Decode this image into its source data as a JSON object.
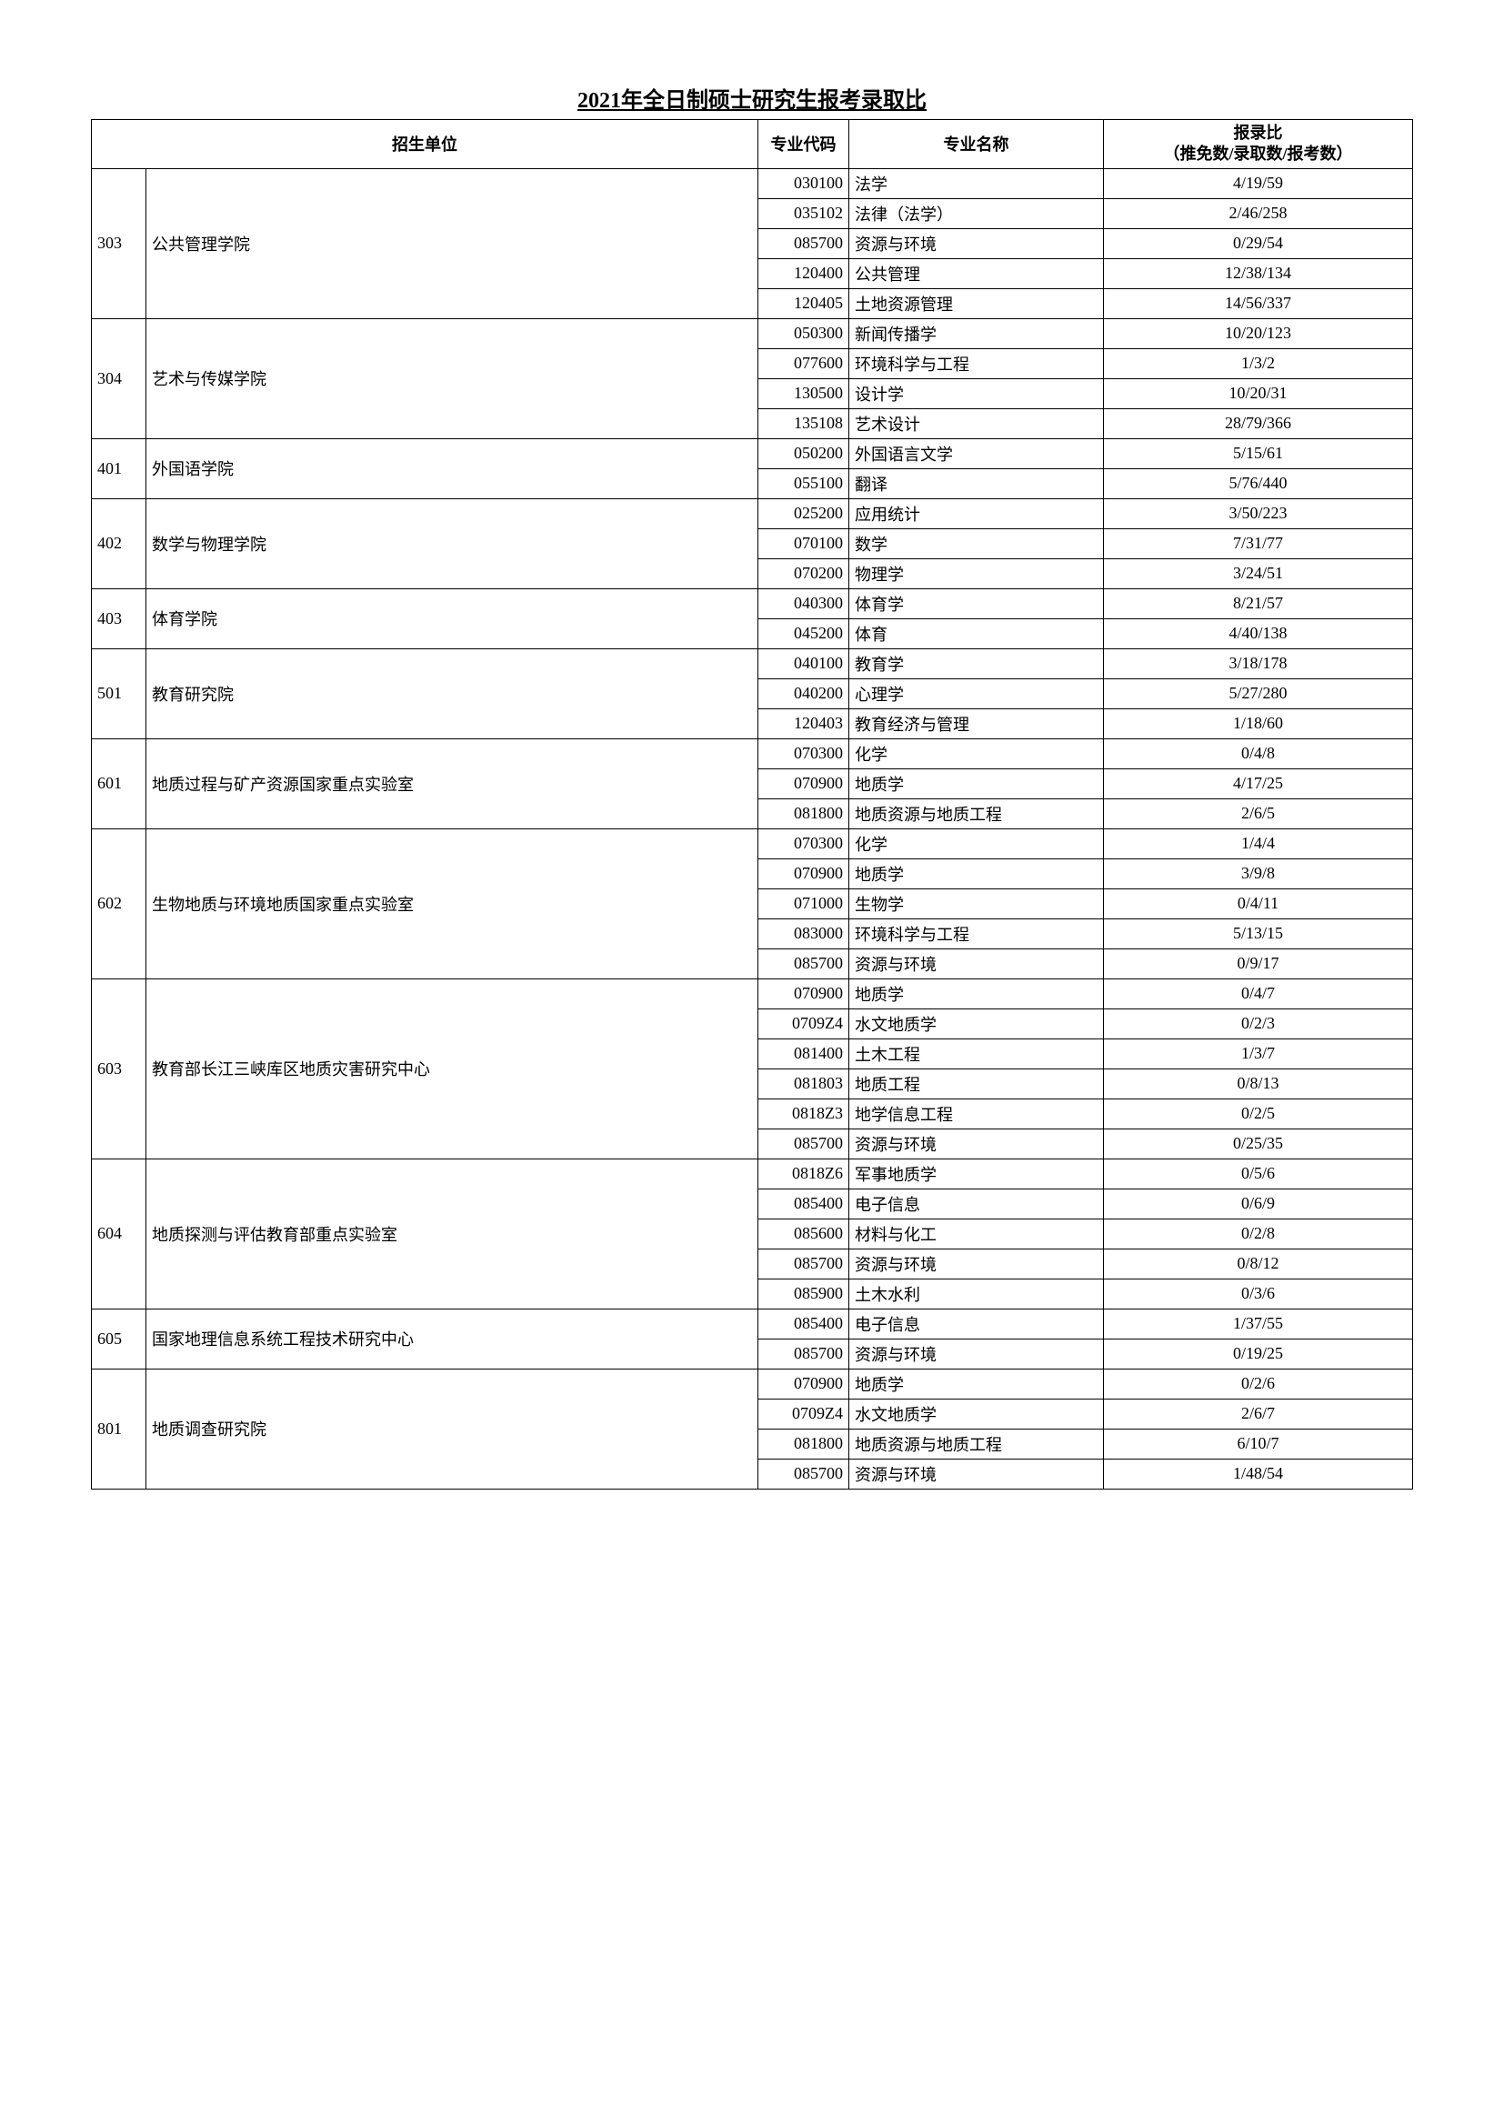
{
  "title": "2021年全日制硕士研究生报考录取比",
  "headers": {
    "dept": "招生单位",
    "code": "专业代码",
    "major": "专业名称",
    "ratio_line1": "报录比",
    "ratio_line2": "（推免数/录取数/报考数）"
  },
  "departments": [
    {
      "code": "303",
      "name": "公共管理学院",
      "rows": [
        {
          "code": "030100",
          "major": "法学",
          "ratio": "4/19/59"
        },
        {
          "code": "035102",
          "major": "法律（法学）",
          "ratio": "2/46/258"
        },
        {
          "code": "085700",
          "major": "资源与环境",
          "ratio": "0/29/54"
        },
        {
          "code": "120400",
          "major": "公共管理",
          "ratio": "12/38/134"
        },
        {
          "code": "120405",
          "major": "土地资源管理",
          "ratio": "14/56/337"
        }
      ]
    },
    {
      "code": "304",
      "name": "艺术与传媒学院",
      "rows": [
        {
          "code": "050300",
          "major": "新闻传播学",
          "ratio": "10/20/123"
        },
        {
          "code": "077600",
          "major": "环境科学与工程",
          "ratio": "1/3/2"
        },
        {
          "code": "130500",
          "major": "设计学",
          "ratio": "10/20/31"
        },
        {
          "code": "135108",
          "major": "艺术设计",
          "ratio": "28/79/366"
        }
      ]
    },
    {
      "code": "401",
      "name": "外国语学院",
      "rows": [
        {
          "code": "050200",
          "major": "外国语言文学",
          "ratio": "5/15/61"
        },
        {
          "code": "055100",
          "major": "翻译",
          "ratio": "5/76/440"
        }
      ]
    },
    {
      "code": "402",
      "name": "数学与物理学院",
      "rows": [
        {
          "code": "025200",
          "major": "应用统计",
          "ratio": "3/50/223"
        },
        {
          "code": "070100",
          "major": "数学",
          "ratio": "7/31/77"
        },
        {
          "code": "070200",
          "major": "物理学",
          "ratio": "3/24/51"
        }
      ]
    },
    {
      "code": "403",
      "name": "体育学院",
      "rows": [
        {
          "code": "040300",
          "major": "体育学",
          "ratio": "8/21/57"
        },
        {
          "code": "045200",
          "major": "体育",
          "ratio": "4/40/138"
        }
      ]
    },
    {
      "code": "501",
      "name": "教育研究院",
      "rows": [
        {
          "code": "040100",
          "major": "教育学",
          "ratio": "3/18/178"
        },
        {
          "code": "040200",
          "major": "心理学",
          "ratio": "5/27/280"
        },
        {
          "code": "120403",
          "major": "教育经济与管理",
          "ratio": "1/18/60"
        }
      ]
    },
    {
      "code": "601",
      "name": "地质过程与矿产资源国家重点实验室",
      "rows": [
        {
          "code": "070300",
          "major": "化学",
          "ratio": "0/4/8"
        },
        {
          "code": "070900",
          "major": "地质学",
          "ratio": "4/17/25"
        },
        {
          "code": "081800",
          "major": "地质资源与地质工程",
          "ratio": "2/6/5"
        }
      ]
    },
    {
      "code": "602",
      "name": "生物地质与环境地质国家重点实验室",
      "rows": [
        {
          "code": "070300",
          "major": "化学",
          "ratio": "1/4/4"
        },
        {
          "code": "070900",
          "major": "地质学",
          "ratio": "3/9/8"
        },
        {
          "code": "071000",
          "major": "生物学",
          "ratio": "0/4/11"
        },
        {
          "code": "083000",
          "major": "环境科学与工程",
          "ratio": "5/13/15"
        },
        {
          "code": "085700",
          "major": "资源与环境",
          "ratio": "0/9/17"
        }
      ]
    },
    {
      "code": "603",
      "name": "教育部长江三峡库区地质灾害研究中心",
      "rows": [
        {
          "code": "070900",
          "major": "地质学",
          "ratio": "0/4/7"
        },
        {
          "code": "0709Z4",
          "major": "水文地质学",
          "ratio": "0/2/3"
        },
        {
          "code": "081400",
          "major": "土木工程",
          "ratio": "1/3/7"
        },
        {
          "code": "081803",
          "major": "地质工程",
          "ratio": "0/8/13"
        },
        {
          "code": "0818Z3",
          "major": "地学信息工程",
          "ratio": "0/2/5"
        },
        {
          "code": "085700",
          "major": "资源与环境",
          "ratio": "0/25/35"
        }
      ]
    },
    {
      "code": "604",
      "name": "地质探测与评估教育部重点实验室",
      "rows": [
        {
          "code": "0818Z6",
          "major": "军事地质学",
          "ratio": "0/5/6"
        },
        {
          "code": "085400",
          "major": "电子信息",
          "ratio": "0/6/9"
        },
        {
          "code": "085600",
          "major": "材料与化工",
          "ratio": "0/2/8"
        },
        {
          "code": "085700",
          "major": "资源与环境",
          "ratio": "0/8/12"
        },
        {
          "code": "085900",
          "major": "土木水利",
          "ratio": "0/3/6"
        }
      ]
    },
    {
      "code": "605",
      "name": "国家地理信息系统工程技术研究中心",
      "rows": [
        {
          "code": "085400",
          "major": "电子信息",
          "ratio": "1/37/55"
        },
        {
          "code": "085700",
          "major": "资源与环境",
          "ratio": "0/19/25"
        }
      ]
    },
    {
      "code": "801",
      "name": "地质调查研究院",
      "rows": [
        {
          "code": "070900",
          "major": "地质学",
          "ratio": "0/2/6"
        },
        {
          "code": "0709Z4",
          "major": "水文地质学",
          "ratio": "2/6/7"
        },
        {
          "code": "081800",
          "major": "地质资源与地质工程",
          "ratio": "6/10/7"
        },
        {
          "code": "085700",
          "major": "资源与环境",
          "ratio": "1/48/54"
        }
      ]
    }
  ],
  "style": {
    "background_color": "#ffffff",
    "text_color": "#000000",
    "border_color": "#000000",
    "title_fontsize": 24,
    "cell_fontsize": 18
  }
}
